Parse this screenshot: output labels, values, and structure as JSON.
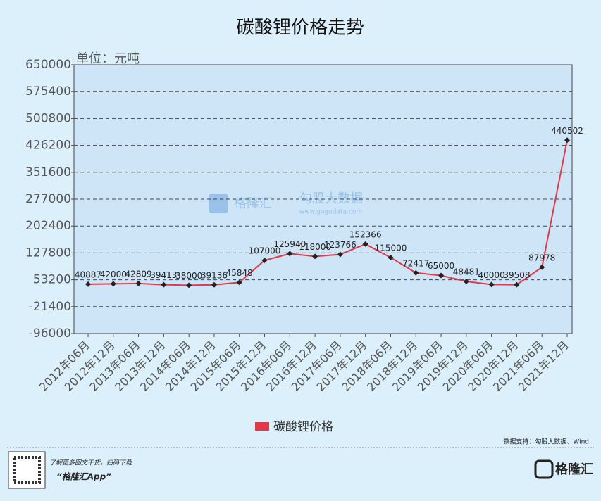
{
  "chart_data": {
    "type": "line",
    "title": "碳酸锂价格走势",
    "unit_label": "单位：元吨",
    "categories": [
      "2012年06月",
      "2012年12月",
      "2013年06月",
      "2013年12月",
      "2014年06月",
      "2014年12月",
      "2015年06月",
      "2015年12月",
      "2016年06月",
      "2016年12月",
      "2017年06月",
      "2017年12月",
      "2018年06月",
      "2018年12月",
      "2019年06月",
      "2019年12月",
      "2020年06月",
      "2020年12月",
      "2021年06月",
      "2021年12月"
    ],
    "series": [
      {
        "name": "碳酸锂价格",
        "color": "#e2394a",
        "values": [
          40887,
          42000,
          42809,
          39413,
          38000,
          39136,
          45848,
          107000,
          125940,
          118000,
          123766,
          152366,
          115000,
          72417,
          65000,
          48481,
          40000,
          39508,
          87978,
          440502
        ]
      }
    ],
    "ylim": [
      -96000,
      650000
    ],
    "yticks": [
      -96000,
      -21400,
      53200,
      127800,
      202400,
      277000,
      351600,
      426200,
      500800,
      575400,
      650000
    ],
    "grid": true,
    "source": "数据支持：勾股大数据、Wind",
    "watermark": {
      "brand": "格隆汇",
      "name": "勾股大数据",
      "url": "www.gogudata.com"
    },
    "footer": {
      "tagline": "了解更多图文干货，扫码下载",
      "app": "“格隆汇App”",
      "logo": "格隆汇"
    }
  }
}
